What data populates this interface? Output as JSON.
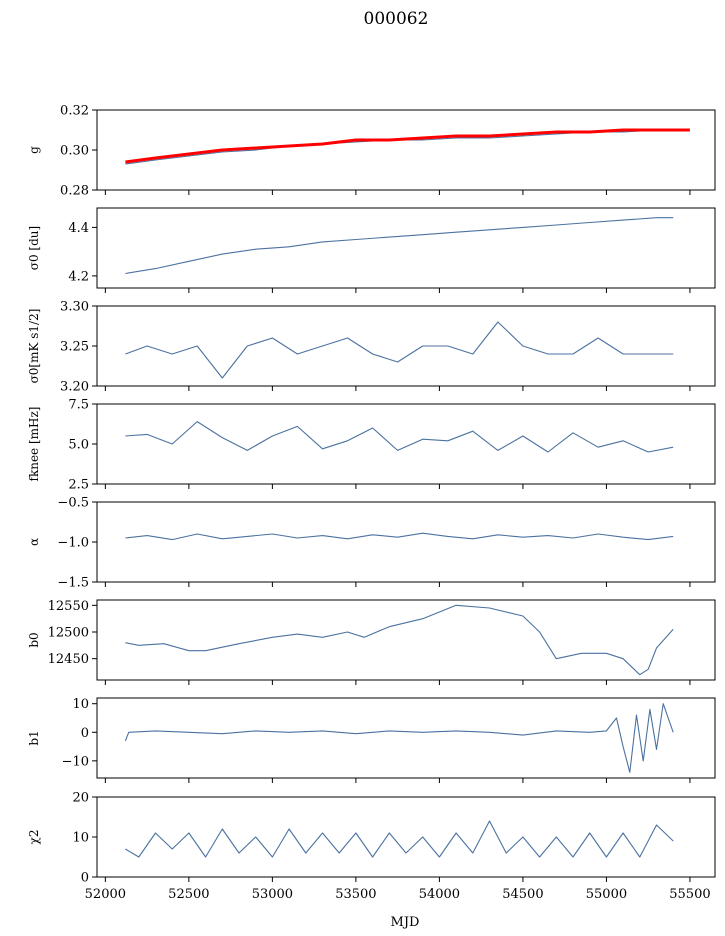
{
  "chart_data": {
    "type": "line",
    "title": "000062",
    "xlabel": "MJD",
    "xlim": [
      51950,
      55650
    ],
    "xticks": [
      52000,
      52500,
      53000,
      53500,
      54000,
      54500,
      55000,
      55500
    ],
    "xtick_labels": [
      "52000",
      "52500",
      "53000",
      "53500",
      "54000",
      "54500",
      "55000",
      "55500"
    ],
    "colors": {
      "series": "#4c72a0",
      "fit": "#ff0000",
      "frame": "#000000"
    },
    "panels": [
      {
        "ylabel": "g",
        "ylim": [
          0.28,
          0.32
        ],
        "yticks": [
          0.28,
          0.3,
          0.32
        ],
        "ytick_labels": [
          "0.28",
          "0.30",
          "0.32"
        ],
        "series": [
          {
            "type": "line",
            "style": "data",
            "x": [
              52120,
              52300,
              52500,
              52700,
              52900,
              53100,
              53300,
              53500,
              53700,
              53900,
              54100,
              54300,
              54500,
              54700,
              54900,
              55100,
              55300,
              55400
            ],
            "y": [
              0.293,
              0.295,
              0.297,
              0.299,
              0.3,
              0.302,
              0.303,
              0.304,
              0.305,
              0.305,
              0.306,
              0.306,
              0.307,
              0.308,
              0.309,
              0.309,
              0.31,
              0.31
            ]
          },
          {
            "type": "line",
            "style": "fit",
            "x": [
              52120,
              52300,
              52500,
              52700,
              52900,
              53100,
              53300,
              53500,
              53700,
              53900,
              54100,
              54300,
              54500,
              54700,
              54900,
              55100,
              55300,
              55500
            ],
            "y": [
              0.294,
              0.296,
              0.298,
              0.3,
              0.301,
              0.302,
              0.303,
              0.305,
              0.305,
              0.306,
              0.307,
              0.307,
              0.308,
              0.309,
              0.309,
              0.31,
              0.31,
              0.31
            ]
          }
        ]
      },
      {
        "ylabel": "σ0 [du]",
        "ylim": [
          4.15,
          4.48
        ],
        "yticks": [
          4.2,
          4.4
        ],
        "ytick_labels": [
          "4.2",
          "4.4"
        ],
        "series": [
          {
            "type": "line",
            "style": "data",
            "x": [
              52120,
              52300,
              52500,
              52700,
              52900,
              53100,
              53300,
              53500,
              53700,
              53900,
              54100,
              54300,
              54500,
              54700,
              54900,
              55100,
              55300,
              55400
            ],
            "y": [
              4.21,
              4.23,
              4.26,
              4.29,
              4.31,
              4.32,
              4.34,
              4.35,
              4.36,
              4.37,
              4.38,
              4.39,
              4.4,
              4.41,
              4.42,
              4.43,
              4.44,
              4.44
            ]
          }
        ]
      },
      {
        "ylabel": "σ0[mK s1/2]",
        "ylim": [
          3.2,
          3.3
        ],
        "yticks": [
          3.2,
          3.25,
          3.3
        ],
        "ytick_labels": [
          "3.20",
          "3.25",
          "3.30"
        ],
        "series": [
          {
            "type": "line",
            "style": "data",
            "x": [
              52120,
              52250,
              52400,
              52550,
              52700,
              52850,
              53000,
              53150,
              53300,
              53450,
              53600,
              53750,
              53900,
              54050,
              54200,
              54350,
              54500,
              54650,
              54800,
              54950,
              55100,
              55250,
              55400
            ],
            "y": [
              3.24,
              3.25,
              3.24,
              3.25,
              3.21,
              3.25,
              3.26,
              3.24,
              3.25,
              3.26,
              3.24,
              3.23,
              3.25,
              3.25,
              3.24,
              3.28,
              3.25,
              3.24,
              3.24,
              3.26,
              3.24,
              3.24,
              3.24
            ]
          }
        ]
      },
      {
        "ylabel": "fknee [mHz]",
        "ylim": [
          2.5,
          7.5
        ],
        "yticks": [
          2.5,
          5.0,
          7.5
        ],
        "ytick_labels": [
          "2.5",
          "5.0",
          "7.5"
        ],
        "series": [
          {
            "type": "line",
            "style": "data",
            "x": [
              52120,
              52250,
              52400,
              52550,
              52700,
              52850,
              53000,
              53150,
              53300,
              53450,
              53600,
              53750,
              53900,
              54050,
              54200,
              54350,
              54500,
              54650,
              54800,
              54950,
              55100,
              55250,
              55400
            ],
            "y": [
              5.5,
              5.6,
              5.0,
              6.4,
              5.4,
              4.6,
              5.5,
              6.1,
              4.7,
              5.2,
              6.0,
              4.6,
              5.3,
              5.2,
              5.8,
              4.6,
              5.5,
              4.5,
              5.7,
              4.8,
              5.2,
              4.5,
              4.8
            ]
          }
        ]
      },
      {
        "ylabel": "α",
        "ylim": [
          -1.5,
          -0.5
        ],
        "yticks": [
          -1.5,
          -1.0,
          -0.5
        ],
        "ytick_labels": [
          "−1.5",
          "−1.0",
          "−0.5"
        ],
        "series": [
          {
            "type": "line",
            "style": "data",
            "x": [
              52120,
              52250,
              52400,
              52550,
              52700,
              52850,
              53000,
              53150,
              53300,
              53450,
              53600,
              53750,
              53900,
              54050,
              54200,
              54350,
              54500,
              54650,
              54800,
              54950,
              55100,
              55250,
              55400
            ],
            "y": [
              -0.95,
              -0.92,
              -0.97,
              -0.9,
              -0.96,
              -0.93,
              -0.9,
              -0.95,
              -0.92,
              -0.96,
              -0.91,
              -0.94,
              -0.89,
              -0.93,
              -0.96,
              -0.91,
              -0.94,
              -0.92,
              -0.95,
              -0.9,
              -0.94,
              -0.97,
              -0.93
            ]
          }
        ]
      },
      {
        "ylabel": "b0",
        "ylim": [
          12410,
          12560
        ],
        "yticks": [
          12450,
          12500,
          12550
        ],
        "ytick_labels": [
          "12450",
          "12500",
          "12550"
        ],
        "series": [
          {
            "type": "line",
            "style": "data",
            "x": [
              52120,
              52200,
              52350,
              52500,
              52600,
              52800,
              53000,
              53150,
              53300,
              53450,
              53550,
              53700,
              53900,
              54100,
              54300,
              54500,
              54600,
              54700,
              54850,
              55000,
              55100,
              55200,
              55250,
              55300,
              55400
            ],
            "y": [
              12480,
              12475,
              12478,
              12465,
              12465,
              12478,
              12490,
              12496,
              12490,
              12500,
              12490,
              12510,
              12525,
              12550,
              12545,
              12530,
              12500,
              12450,
              12460,
              12460,
              12450,
              12420,
              12430,
              12470,
              12505
            ]
          }
        ]
      },
      {
        "ylabel": "b1",
        "ylim": [
          -16,
          12
        ],
        "yticks": [
          -10,
          0,
          10
        ],
        "ytick_labels": [
          "−10",
          "0",
          "10"
        ],
        "series": [
          {
            "type": "line",
            "style": "data",
            "x": [
              52120,
              52140,
              52300,
              52500,
              52700,
              52900,
              53100,
              53300,
              53500,
              53700,
              53900,
              54100,
              54300,
              54500,
              54700,
              54900,
              55000,
              55060,
              55100,
              55140,
              55180,
              55220,
              55260,
              55300,
              55340,
              55400
            ],
            "y": [
              -3,
              0,
              0.5,
              0,
              -0.5,
              0.5,
              0,
              0.5,
              -0.5,
              0.5,
              0,
              0.5,
              0,
              -1,
              0.5,
              0,
              0.5,
              5,
              -5,
              -14,
              6,
              -10,
              8,
              -6,
              10,
              0
            ]
          }
        ]
      },
      {
        "ylabel": "χ2",
        "ylim": [
          0,
          20
        ],
        "yticks": [
          0,
          10,
          20
        ],
        "ytick_labels": [
          "0",
          "10",
          "20"
        ],
        "series": [
          {
            "type": "line",
            "style": "data",
            "x": [
              52120,
              52200,
              52300,
              52400,
              52500,
              52600,
              52700,
              52800,
              52900,
              53000,
              53100,
              53200,
              53300,
              53400,
              53500,
              53600,
              53700,
              53800,
              53900,
              54000,
              54100,
              54200,
              54300,
              54400,
              54500,
              54600,
              54700,
              54800,
              54900,
              55000,
              55100,
              55200,
              55300,
              55400
            ],
            "y": [
              7,
              5,
              11,
              7,
              11,
              5,
              12,
              6,
              10,
              5,
              12,
              6,
              11,
              6,
              11,
              5,
              11,
              6,
              10,
              5,
              11,
              6,
              14,
              6,
              10,
              5,
              10,
              5,
              11,
              5,
              11,
              5,
              13,
              9
            ]
          }
        ]
      }
    ]
  }
}
